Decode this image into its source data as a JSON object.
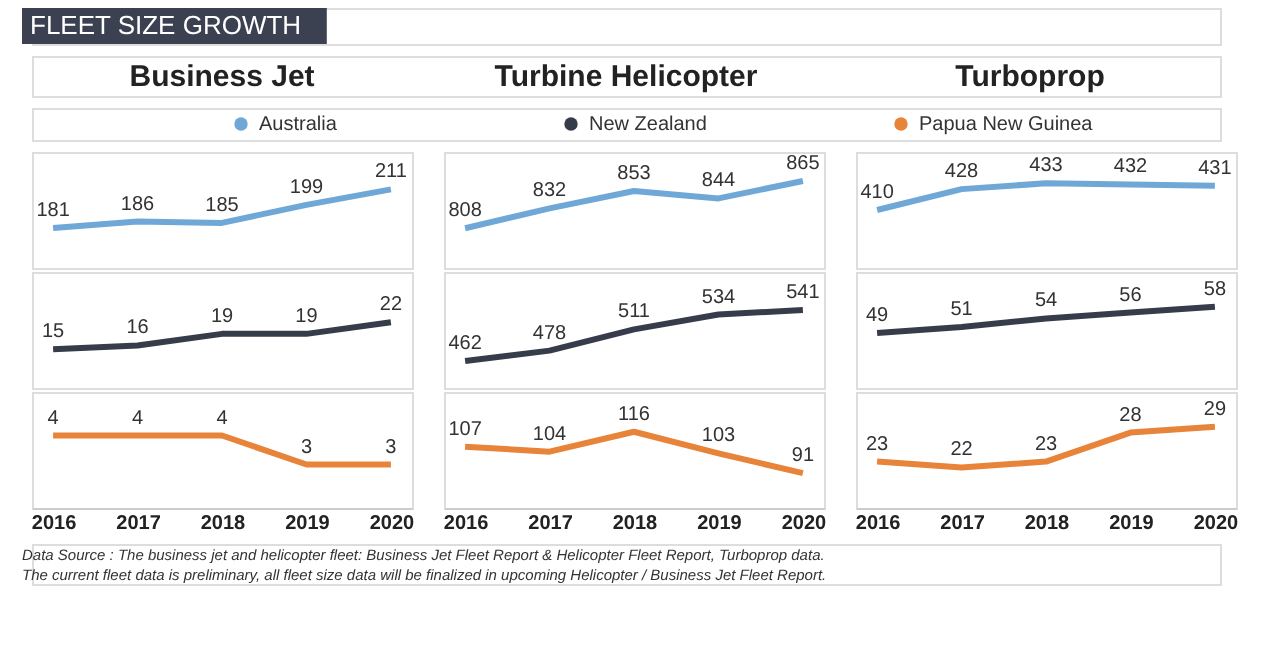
{
  "chart_data": [
    {
      "type": "line",
      "title": "Business Jet",
      "annotations": [
        "FLEET SIZE GROWTH"
      ],
      "categories": [
        "2016",
        "2017",
        "2018",
        "2019",
        "2020"
      ],
      "data_labels": true,
      "tick_labels": false,
      "ylim": [
        150,
        240
      ],
      "series": [
        {
          "color": "#6fa8d6",
          "values": [
            181,
            186,
            185,
            199,
            211
          ]
        }
      ]
    },
    {
      "type": "line",
      "categories": [
        "2016",
        "2017",
        "2018",
        "2019",
        "2020"
      ],
      "data_labels": true,
      "tick_labels": false,
      "ylim": [
        5,
        35
      ],
      "series": [
        {
          "color": "#363c4a",
          "values": [
            15,
            16,
            19,
            19,
            22
          ]
        }
      ]
    },
    {
      "type": "line",
      "categories": [
        "2016",
        "2017",
        "2018",
        "2019",
        "2020"
      ],
      "data_labels": true,
      "tick_labels": "x",
      "ylim": [
        1.5,
        5.5
      ],
      "series": [
        {
          "color": "#e8833a",
          "values": [
            4,
            4,
            4,
            3,
            3
          ]
        }
      ]
    },
    {
      "type": "line",
      "title": "Turbine Helicopter",
      "legend": "top",
      "categories": [
        "2016",
        "2017",
        "2018",
        "2019",
        "2020"
      ],
      "data_labels": true,
      "tick_labels": false,
      "ylim": [
        760,
        900
      ],
      "series": [
        {
          "name": "Australia",
          "color": "#6fa8d6",
          "values": [
            808,
            832,
            853,
            844,
            865
          ]
        }
      ]
    },
    {
      "type": "line",
      "legend": "top",
      "categories": [
        "2016",
        "2017",
        "2018",
        "2019",
        "2020"
      ],
      "data_labels": true,
      "tick_labels": false,
      "ylim": [
        420,
        600
      ],
      "series": [
        {
          "name": "New Zealand",
          "color": "#363c4a",
          "values": [
            462,
            478,
            511,
            534,
            541
          ]
        }
      ]
    },
    {
      "type": "line",
      "legend": "top",
      "categories": [
        "2016",
        "2017",
        "2018",
        "2019",
        "2020"
      ],
      "data_labels": true,
      "tick_labels": "x",
      "ylim": [
        70,
        140
      ],
      "series": [
        {
          "name": "Papua New Guinea",
          "color": "#e8833a",
          "values": [
            107,
            104,
            116,
            103,
            91
          ]
        }
      ]
    },
    {
      "type": "line",
      "title": "Turboprop",
      "categories": [
        "2016",
        "2017",
        "2018",
        "2019",
        "2020"
      ],
      "data_labels": true,
      "tick_labels": false,
      "ylim": [
        360,
        460
      ],
      "series": [
        {
          "color": "#6fa8d6",
          "values": [
            410,
            428,
            433,
            432,
            431
          ]
        }
      ]
    },
    {
      "type": "line",
      "categories": [
        "2016",
        "2017",
        "2018",
        "2019",
        "2020"
      ],
      "data_labels": true,
      "tick_labels": false,
      "ylim": [
        30,
        70
      ],
      "series": [
        {
          "color": "#363c4a",
          "values": [
            49,
            51,
            54,
            56,
            58
          ]
        }
      ]
    },
    {
      "type": "line",
      "annotations": [
        "Data Source : The business jet and helicopter fleet: Business Jet Fleet Report & Helicopter Fleet Report, Turboprop data.",
        "The current fleet data is preliminary, all fleet size data will be finalized in upcoming Helicopter / Business Jet Fleet Report."
      ],
      "categories": [
        "2016",
        "2017",
        "2018",
        "2019",
        "2020"
      ],
      "data_labels": true,
      "tick_labels": "x",
      "ylim": [
        15,
        35
      ],
      "series": [
        {
          "color": "#e8833a",
          "values": [
            23,
            22,
            23,
            28,
            29
          ]
        }
      ]
    }
  ]
}
